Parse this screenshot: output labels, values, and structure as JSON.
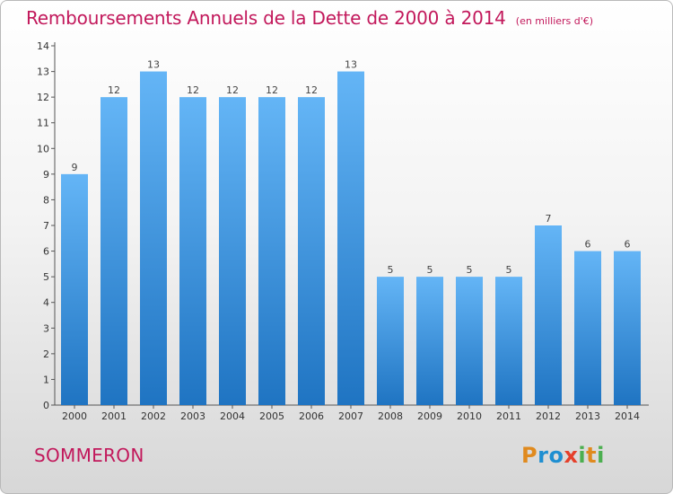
{
  "title": "Remboursements Annuels de la Dette de 2000 à 2014",
  "units": "(en milliers d'€)",
  "commune": "SOMMERON",
  "logo": {
    "letters": [
      "P",
      "r",
      "o",
      "x",
      "i",
      "t",
      "i"
    ],
    "colors": [
      "#e08a1e",
      "#1f8fd1",
      "#1f8fd1",
      "#e5402b",
      "#4caf50",
      "#e08a1e",
      "#4caf50"
    ]
  },
  "colors": {
    "title": "#c2185b",
    "bar_top": "#64b5f6",
    "bar_bottom": "#1f74c2"
  },
  "chart_data": {
    "type": "bar",
    "title": "Remboursements Annuels de la Dette de 2000 à 2014",
    "categories": [
      "2000",
      "2001",
      "2002",
      "2003",
      "2004",
      "2005",
      "2006",
      "2007",
      "2008",
      "2009",
      "2010",
      "2011",
      "2012",
      "2013",
      "2014"
    ],
    "values": [
      9,
      12,
      13,
      12,
      12,
      12,
      12,
      13,
      5,
      5,
      5,
      5,
      7,
      6,
      6
    ],
    "y_ticks": [
      "0",
      "1",
      "2",
      "3",
      "4",
      "5",
      "6",
      "7",
      "8",
      "9",
      "10",
      "11",
      "12",
      "13",
      "14"
    ],
    "ylim": [
      0,
      14
    ],
    "grid": false,
    "xlabel": "",
    "ylabel": ""
  }
}
